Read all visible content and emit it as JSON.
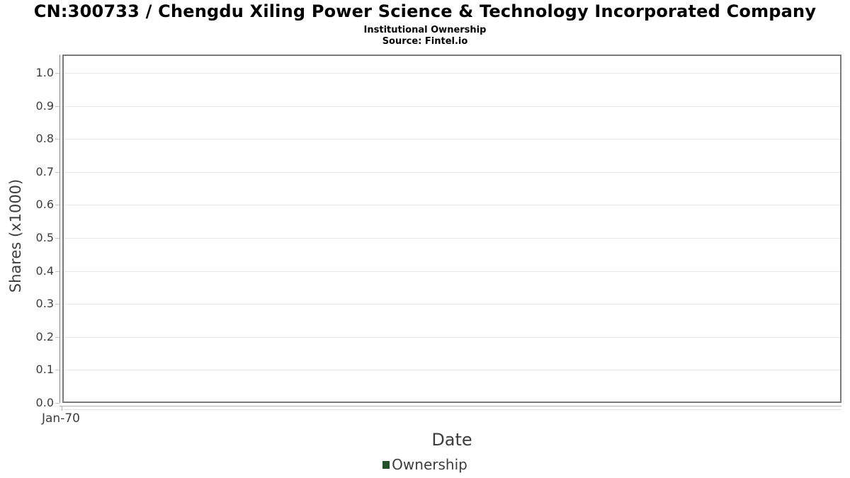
{
  "header": {
    "title": "CN:300733 / Chengdu Xiling Power Science & Technology Incorporated Company",
    "subtitle": "Institutional Ownership",
    "source": "Source: Fintel.io"
  },
  "chart_data": {
    "type": "bar",
    "title": "Institutional Ownership",
    "xlabel": "Date",
    "ylabel": "Shares (x1000)",
    "x_tick_labels": [
      "Jan-70"
    ],
    "y_tick_labels": [
      "0.0",
      "0.1",
      "0.2",
      "0.3",
      "0.4",
      "0.5",
      "0.6",
      "0.7",
      "0.8",
      "0.9",
      "1.0"
    ],
    "ylim": [
      0.0,
      1.06
    ],
    "grid": true,
    "legend_position": "bottom",
    "series": [
      {
        "name": "Ownership",
        "color": "#24502c",
        "values": []
      }
    ]
  }
}
